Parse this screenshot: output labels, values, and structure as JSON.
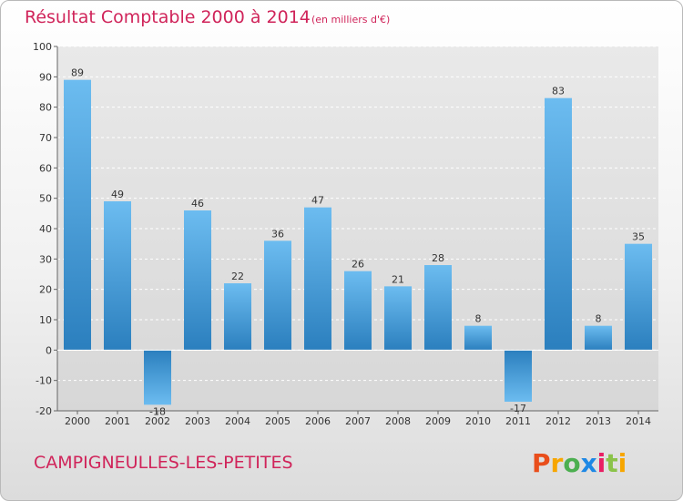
{
  "header": {
    "title": "Résultat Comptable 2000 à 2014",
    "subtitle": "(en milliers d'€)"
  },
  "footer": {
    "commune": "CAMPIGNEULLES-LES-PETITES",
    "logo_text": "Proxiti"
  },
  "colors": {
    "title": "#d0245a",
    "bar_light": "#6cbcf0",
    "bar_dark": "#2b7fbe",
    "logo": [
      "#e94e1b",
      "#f7a600",
      "#4caf50",
      "#1e88e5",
      "#e91e63",
      "#8bc34a",
      "#f7a600"
    ]
  },
  "chart_data": {
    "type": "bar",
    "categories": [
      "2000",
      "2001",
      "2002",
      "2003",
      "2004",
      "2005",
      "2006",
      "2007",
      "2008",
      "2009",
      "2010",
      "2011",
      "2012",
      "2013",
      "2014"
    ],
    "values": [
      89,
      49,
      -18,
      46,
      22,
      36,
      47,
      26,
      21,
      28,
      8,
      -17,
      83,
      8,
      35
    ],
    "ylim": [
      -20,
      100
    ],
    "yticks": [
      -20,
      -10,
      0,
      10,
      20,
      30,
      40,
      50,
      60,
      70,
      80,
      90,
      100
    ],
    "grid": true
  }
}
